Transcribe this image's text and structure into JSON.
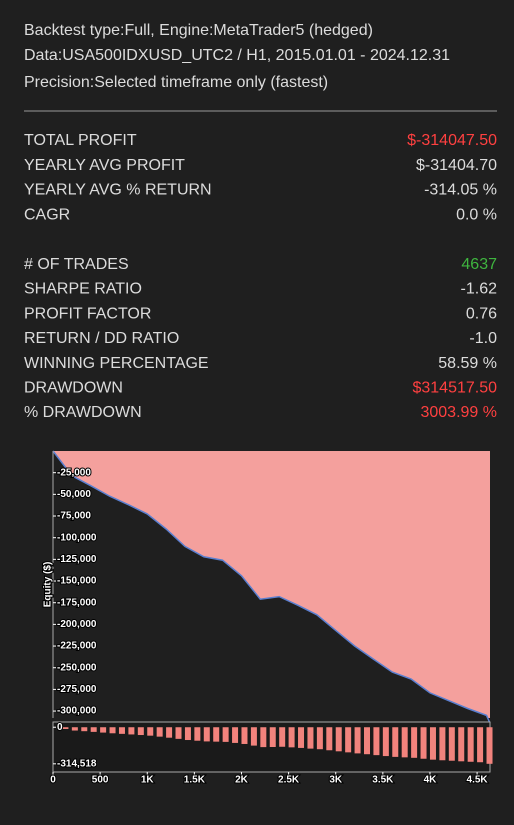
{
  "header": {
    "lines": [
      "Backtest type:Full, Engine:MetaTrader5 (hedged)",
      "Data:USA500IDXUSD_UTC2 / H1, 2015.01.01 - 2024.12.31",
      "Precision:Selected timeframe only (fastest)"
    ]
  },
  "stats": {
    "groups": [
      [
        {
          "label": "TOTAL PROFIT",
          "value": "$-314047.50",
          "color": "#ff4040"
        },
        {
          "label": "YEARLY AVG PROFIT",
          "value": "$-31404.70"
        },
        {
          "label": "YEARLY AVG % RETURN",
          "value": "-314.05 %"
        },
        {
          "label": "CAGR",
          "value": "0.0 %"
        }
      ],
      [
        {
          "label": "# OF TRADES",
          "value": "4637",
          "color": "#3fb53f"
        },
        {
          "label": "SHARPE RATIO",
          "value": "-1.62"
        },
        {
          "label": "PROFIT FACTOR",
          "value": "0.76"
        },
        {
          "label": "RETURN / DD RATIO",
          "value": "-1.0"
        },
        {
          "label": "WINNING PERCENTAGE",
          "value": "58.59 %"
        },
        {
          "label": "DRAWDOWN",
          "value": "$314517.50",
          "color": "#ff4040"
        },
        {
          "label": "% DRAWDOWN",
          "value": "3003.99 %",
          "color": "#ff4040"
        }
      ]
    ]
  },
  "chart_data": [
    {
      "type": "area",
      "y_label": "Equity ($)",
      "color": "#5a7fd0",
      "fill": "#f4a09d",
      "x": [
        0,
        200,
        400,
        600,
        800,
        1000,
        1200,
        1400,
        1600,
        1800,
        2000,
        2200,
        2400,
        2600,
        2800,
        3000,
        3200,
        3400,
        3600,
        3800,
        4000,
        4200,
        4400,
        4600,
        4637
      ],
      "values": [
        0,
        -28500,
        -40000,
        -52000,
        -62000,
        -72600,
        -90000,
        -110000,
        -122000,
        -126000,
        -144000,
        -171000,
        -168000,
        -178000,
        -189000,
        -207000,
        -225000,
        -240000,
        -255000,
        -263000,
        -279000,
        -288000,
        -297000,
        -305000,
        -314047.5
      ],
      "xlim": [
        0,
        4637
      ],
      "ylim": [
        -308000,
        0
      ],
      "yticks": [
        {
          "value": -25000,
          "label": "-25,000"
        },
        {
          "value": -50000,
          "label": "-50,000"
        },
        {
          "value": -75000,
          "label": "-75,000"
        },
        {
          "value": -100000,
          "label": "-100,000"
        },
        {
          "value": -125000,
          "label": "-125,000"
        },
        {
          "value": -150000,
          "label": "-150,000"
        },
        {
          "value": -175000,
          "label": "-175,000"
        },
        {
          "value": -200000,
          "label": "-200,000"
        },
        {
          "value": -225000,
          "label": "-225,000"
        },
        {
          "value": -250000,
          "label": "-250,000"
        },
        {
          "value": -275000,
          "label": "-275,000"
        },
        {
          "value": -300000,
          "label": "-300,000"
        }
      ]
    },
    {
      "type": "bar",
      "color": "#f2837d",
      "x": [
        0,
        100,
        200,
        300,
        400,
        500,
        600,
        700,
        800,
        900,
        1000,
        1100,
        1200,
        1300,
        1400,
        1500,
        1600,
        1700,
        1800,
        1900,
        2000,
        2100,
        2200,
        2300,
        2400,
        2500,
        2600,
        2700,
        2800,
        2900,
        3000,
        3100,
        3200,
        3300,
        3400,
        3500,
        3600,
        3700,
        3800,
        3900,
        4000,
        4100,
        4200,
        4300,
        4400,
        4500,
        4600
      ],
      "values": [
        0,
        -15000,
        -28500,
        -34000,
        -40000,
        -46000,
        -52000,
        -57000,
        -62000,
        -67000,
        -72600,
        -81000,
        -90000,
        -100000,
        -110000,
        -116000,
        -122000,
        -124000,
        -126000,
        -135000,
        -144000,
        -158000,
        -171000,
        -170000,
        -168000,
        -173000,
        -178000,
        -184000,
        -189000,
        -198000,
        -207000,
        -216000,
        -225000,
        -232000,
        -240000,
        -248000,
        -255000,
        -259000,
        -263000,
        -271000,
        -279000,
        -284000,
        -288000,
        -293000,
        -297000,
        -301000,
        -314518
      ],
      "xlim": [
        0,
        4637
      ],
      "ylim": [
        -385000,
        45000
      ],
      "yticks": [
        0,
        {
          "value": -314518,
          "label": "-314,518"
        }
      ],
      "xticks": [
        0,
        500,
        {
          "value": 1000,
          "label": "1K"
        },
        {
          "value": 1500,
          "label": "1.5K"
        },
        {
          "value": 2000,
          "label": "2K"
        },
        {
          "value": 2500,
          "label": "2.5K"
        },
        {
          "value": 3000,
          "label": "3K"
        },
        {
          "value": 3500,
          "label": "3.5K"
        },
        {
          "value": 4000,
          "label": "4K"
        },
        {
          "value": 4500,
          "label": "4.5K"
        }
      ]
    }
  ]
}
